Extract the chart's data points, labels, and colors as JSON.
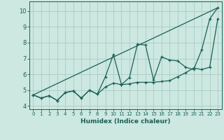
{
  "xlabel": "Humidex (Indice chaleur)",
  "bg_color": "#cce8e0",
  "grid_color": "#aed0c8",
  "line_color": "#1a6058",
  "xlim": [
    -0.5,
    23.5
  ],
  "ylim": [
    3.8,
    10.6
  ],
  "yticks": [
    4,
    5,
    6,
    7,
    8,
    9,
    10
  ],
  "xticks": [
    0,
    1,
    2,
    3,
    4,
    5,
    6,
    7,
    8,
    9,
    10,
    11,
    12,
    13,
    14,
    15,
    16,
    17,
    18,
    19,
    20,
    21,
    22,
    23
  ],
  "line1_x": [
    0,
    1,
    2,
    3,
    4,
    5,
    6,
    7,
    8,
    9,
    10,
    11,
    12,
    13,
    14,
    15,
    16,
    17,
    18,
    19,
    20,
    21,
    22,
    23
  ],
  "line1_y": [
    4.7,
    4.5,
    4.65,
    4.35,
    4.85,
    4.95,
    4.5,
    5.0,
    4.75,
    5.2,
    5.45,
    5.35,
    5.4,
    5.5,
    5.5,
    5.5,
    5.55,
    5.6,
    5.85,
    6.1,
    6.4,
    6.3,
    6.45,
    9.5
  ],
  "line2_x": [
    0,
    1,
    2,
    3,
    4,
    5,
    6,
    7,
    8,
    9,
    10,
    11,
    12,
    13,
    14,
    15,
    16,
    17,
    18,
    19,
    20,
    21,
    22,
    23
  ],
  "line2_y": [
    4.7,
    4.5,
    4.65,
    4.35,
    4.85,
    4.95,
    4.5,
    5.0,
    4.75,
    5.85,
    7.25,
    5.35,
    5.8,
    7.9,
    7.85,
    5.65,
    7.1,
    6.9,
    6.85,
    6.45,
    6.3,
    7.55,
    9.5,
    10.2
  ],
  "line3_x": [
    0,
    23
  ],
  "line3_y": [
    4.7,
    10.2
  ]
}
